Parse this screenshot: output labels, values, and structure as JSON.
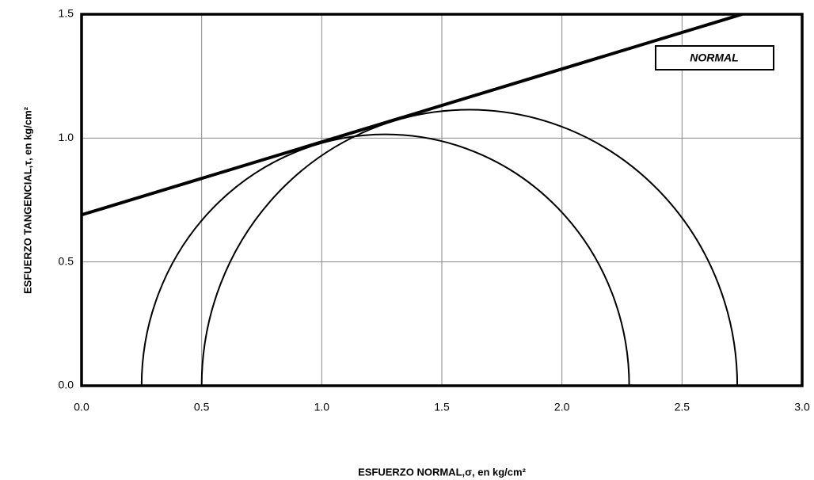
{
  "chart_data": {
    "type": "mohr",
    "xlabel": "ESFUERZO NORMAL,σ, en kg/cm²",
    "ylabel": "ESFUERZO TANGENCIAL,τ, en kg/cm²",
    "annotation": "NORMAL",
    "series": [
      {
        "kind": "line",
        "x": [
          0,
          2.75
        ],
        "values": [
          0.69,
          1.5
        ],
        "color": "#000000"
      },
      {
        "kind": "circle",
        "x": [
          0.25,
          2.28
        ],
        "color": "#000000"
      },
      {
        "kind": "circle",
        "x": [
          0.5,
          2.73
        ],
        "color": "#000000"
      }
    ],
    "xlim": [
      0,
      3
    ],
    "ylim": [
      0,
      1.5
    ],
    "xticks": [
      {
        "value": 0,
        "label": "0.0"
      },
      0.5,
      {
        "value": 1,
        "label": "1.0"
      },
      1.5,
      {
        "value": 2,
        "label": "2.0"
      },
      2.5,
      {
        "value": 3,
        "label": "3.0"
      }
    ],
    "yticks": [
      {
        "value": 0,
        "label": "0.0"
      },
      0.5,
      {
        "value": 1,
        "label": "1.0"
      },
      1.5
    ],
    "grid": true
  }
}
